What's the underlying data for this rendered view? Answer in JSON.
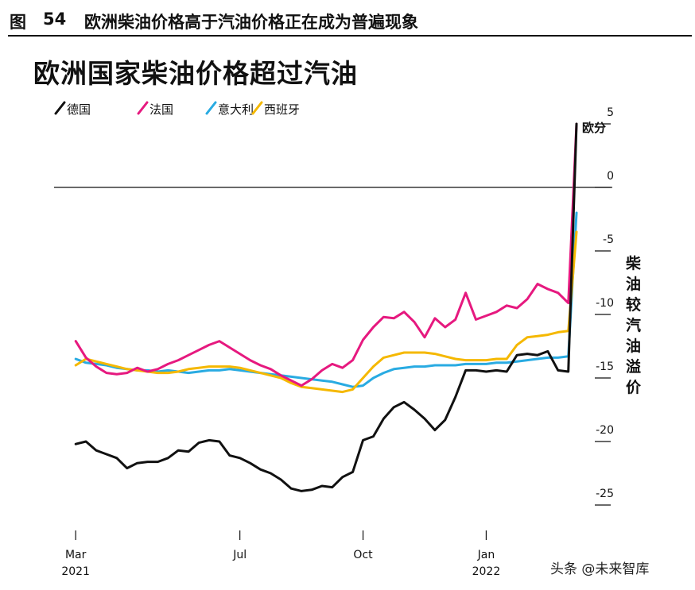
{
  "figure_header": {
    "label": "图",
    "number": "54",
    "caption": "欧洲柴油价格高于汽油价格正在成为普遍现象"
  },
  "chart_data": {
    "type": "line",
    "title": "欧洲国家柴油价格超过汽油",
    "y_unit_label": "欧分",
    "ylabel": "柴油较汽油溢价",
    "ylim": [
      -27,
      6
    ],
    "y_ticks": [
      "5",
      "0",
      "-5",
      "-10",
      "-15",
      "-20",
      "-25"
    ],
    "y_tick_values": [
      5,
      0,
      -5,
      -10,
      -15,
      -20,
      -25
    ],
    "x_ticks": [
      {
        "label": "Mar",
        "sub": "2021",
        "value": 0
      },
      {
        "label": "Jul",
        "sub": "",
        "value": 4
      },
      {
        "label": "Oct",
        "sub": "",
        "value": 7
      },
      {
        "label": "Jan",
        "sub": "2022",
        "value": 10
      }
    ],
    "xlim": [
      -0.1,
      12.2
    ],
    "grid": false,
    "reference_line": 0,
    "legend_position": "top-left",
    "series": [
      {
        "name": "德国",
        "color": "#111111",
        "x": [
          0,
          0.25,
          0.5,
          0.75,
          1,
          1.25,
          1.5,
          1.75,
          2,
          2.25,
          2.5,
          2.75,
          3,
          3.25,
          3.5,
          3.75,
          4,
          4.25,
          4.5,
          4.75,
          5,
          5.25,
          5.5,
          5.75,
          6,
          6.25,
          6.5,
          6.75,
          7,
          7.25,
          7.5,
          7.75,
          8,
          8.25,
          8.5,
          8.75,
          9,
          9.25,
          9.5,
          9.75,
          10,
          10.25,
          10.5,
          10.75,
          11,
          11.25,
          11.5,
          11.75,
          12,
          12.2
        ],
        "values": [
          -20.2,
          -20,
          -20.7,
          -21,
          -21.3,
          -22.1,
          -21.7,
          -21.6,
          -21.6,
          -21.3,
          -20.7,
          -20.8,
          -20.1,
          -19.9,
          -20,
          -21.1,
          -21.3,
          -21.7,
          -22.2,
          -22.5,
          -23,
          -23.7,
          -23.9,
          -23.8,
          -23.5,
          -23.6,
          -22.8,
          -22.4,
          -19.9,
          -19.6,
          -18.2,
          -17.3,
          -16.9,
          -17.5,
          -18.2,
          -19.1,
          -18.3,
          -16.5,
          -14.4,
          -14.4,
          -14.5,
          -14.4,
          -14.5,
          -13.2,
          -13.1,
          -13.2,
          -12.9,
          -14.4,
          -14.5,
          5
        ],
        "y_ref_note": "end value"
      },
      {
        "name": "法国",
        "color": "#e6197f",
        "x": [
          0,
          0.25,
          0.5,
          0.75,
          1,
          1.25,
          1.5,
          1.75,
          2,
          2.25,
          2.5,
          2.75,
          3,
          3.25,
          3.5,
          3.75,
          4,
          4.25,
          4.5,
          4.75,
          5,
          5.25,
          5.5,
          5.75,
          6,
          6.25,
          6.5,
          6.75,
          7,
          7.25,
          7.5,
          7.75,
          8,
          8.25,
          8.5,
          8.75,
          9,
          9.25,
          9.5,
          9.75,
          10,
          10.25,
          10.5,
          10.75,
          11,
          11.25,
          11.5,
          11.75,
          12,
          12.2
        ],
        "values": [
          -12.1,
          -13.4,
          -14.1,
          -14.6,
          -14.7,
          -14.6,
          -14.2,
          -14.5,
          -14.3,
          -13.9,
          -13.6,
          -13.2,
          -12.8,
          -12.4,
          -12.1,
          -12.6,
          -13.1,
          -13.6,
          -14,
          -14.3,
          -14.8,
          -15.2,
          -15.6,
          -15.1,
          -14.4,
          -13.9,
          -14.2,
          -13.6,
          -12,
          -11,
          -10.2,
          -10.3,
          -9.8,
          -10.6,
          -11.8,
          -10.3,
          -11,
          -10.4,
          -8.3,
          -10.4,
          -10.1,
          -9.8,
          -9.3,
          -9.5,
          -8.8,
          -7.6,
          -8,
          -8.3,
          -9.1,
          5
        ],
        "y_ref_note": "end value"
      },
      {
        "name": "意大利",
        "color": "#29abe2",
        "x": [
          0,
          0.25,
          0.5,
          0.75,
          1,
          1.25,
          1.5,
          1.75,
          2,
          2.25,
          2.5,
          2.75,
          3,
          3.25,
          3.5,
          3.75,
          4,
          4.25,
          4.5,
          4.75,
          5,
          5.25,
          5.5,
          5.75,
          6,
          6.25,
          6.5,
          6.75,
          7,
          7.25,
          7.5,
          7.75,
          8,
          8.25,
          8.5,
          8.75,
          9,
          9.25,
          9.5,
          9.75,
          10,
          10.25,
          10.5,
          10.75,
          11,
          11.25,
          11.5,
          11.75,
          12,
          12.2
        ],
        "values": [
          -13.5,
          -13.8,
          -13.9,
          -14,
          -14.2,
          -14.3,
          -14.4,
          -14.4,
          -14.5,
          -14.4,
          -14.5,
          -14.6,
          -14.5,
          -14.4,
          -14.4,
          -14.3,
          -14.4,
          -14.5,
          -14.6,
          -14.7,
          -14.8,
          -14.9,
          -15,
          -15.1,
          -15.2,
          -15.3,
          -15.5,
          -15.7,
          -15.6,
          -15,
          -14.6,
          -14.3,
          -14.2,
          -14.1,
          -14.1,
          -14,
          -14,
          -14,
          -13.9,
          -13.9,
          -13.9,
          -13.8,
          -13.8,
          -13.7,
          -13.6,
          -13.5,
          -13.4,
          -13.4,
          -13.3,
          -2
        ],
        "y_ref_note": "end value"
      },
      {
        "name": "西班牙",
        "color": "#f5b800",
        "x": [
          0,
          0.25,
          0.5,
          0.75,
          1,
          1.25,
          1.5,
          1.75,
          2,
          2.25,
          2.5,
          2.75,
          3,
          3.25,
          3.5,
          3.75,
          4,
          4.25,
          4.5,
          4.75,
          5,
          5.25,
          5.5,
          5.75,
          6,
          6.25,
          6.5,
          6.75,
          7,
          7.25,
          7.5,
          7.75,
          8,
          8.25,
          8.5,
          8.75,
          9,
          9.25,
          9.5,
          9.75,
          10,
          10.25,
          10.5,
          10.75,
          11,
          11.25,
          11.5,
          11.75,
          12,
          12.2
        ],
        "values": [
          -14,
          -13.5,
          -13.7,
          -13.9,
          -14.1,
          -14.3,
          -14.4,
          -14.5,
          -14.6,
          -14.6,
          -14.5,
          -14.3,
          -14.2,
          -14.1,
          -14.1,
          -14.1,
          -14.2,
          -14.4,
          -14.6,
          -14.8,
          -15,
          -15.4,
          -15.7,
          -15.8,
          -15.9,
          -16,
          -16.1,
          -15.9,
          -15,
          -14.1,
          -13.4,
          -13.2,
          -13,
          -13,
          -13,
          -13.1,
          -13.3,
          -13.5,
          -13.6,
          -13.6,
          -13.6,
          -13.5,
          -13.5,
          -12.4,
          -11.8,
          -11.7,
          -11.6,
          -11.4,
          -11.3,
          -3.5
        ],
        "y_ref_note": "end value"
      }
    ]
  },
  "watermark_text": "头条 @未来智库"
}
